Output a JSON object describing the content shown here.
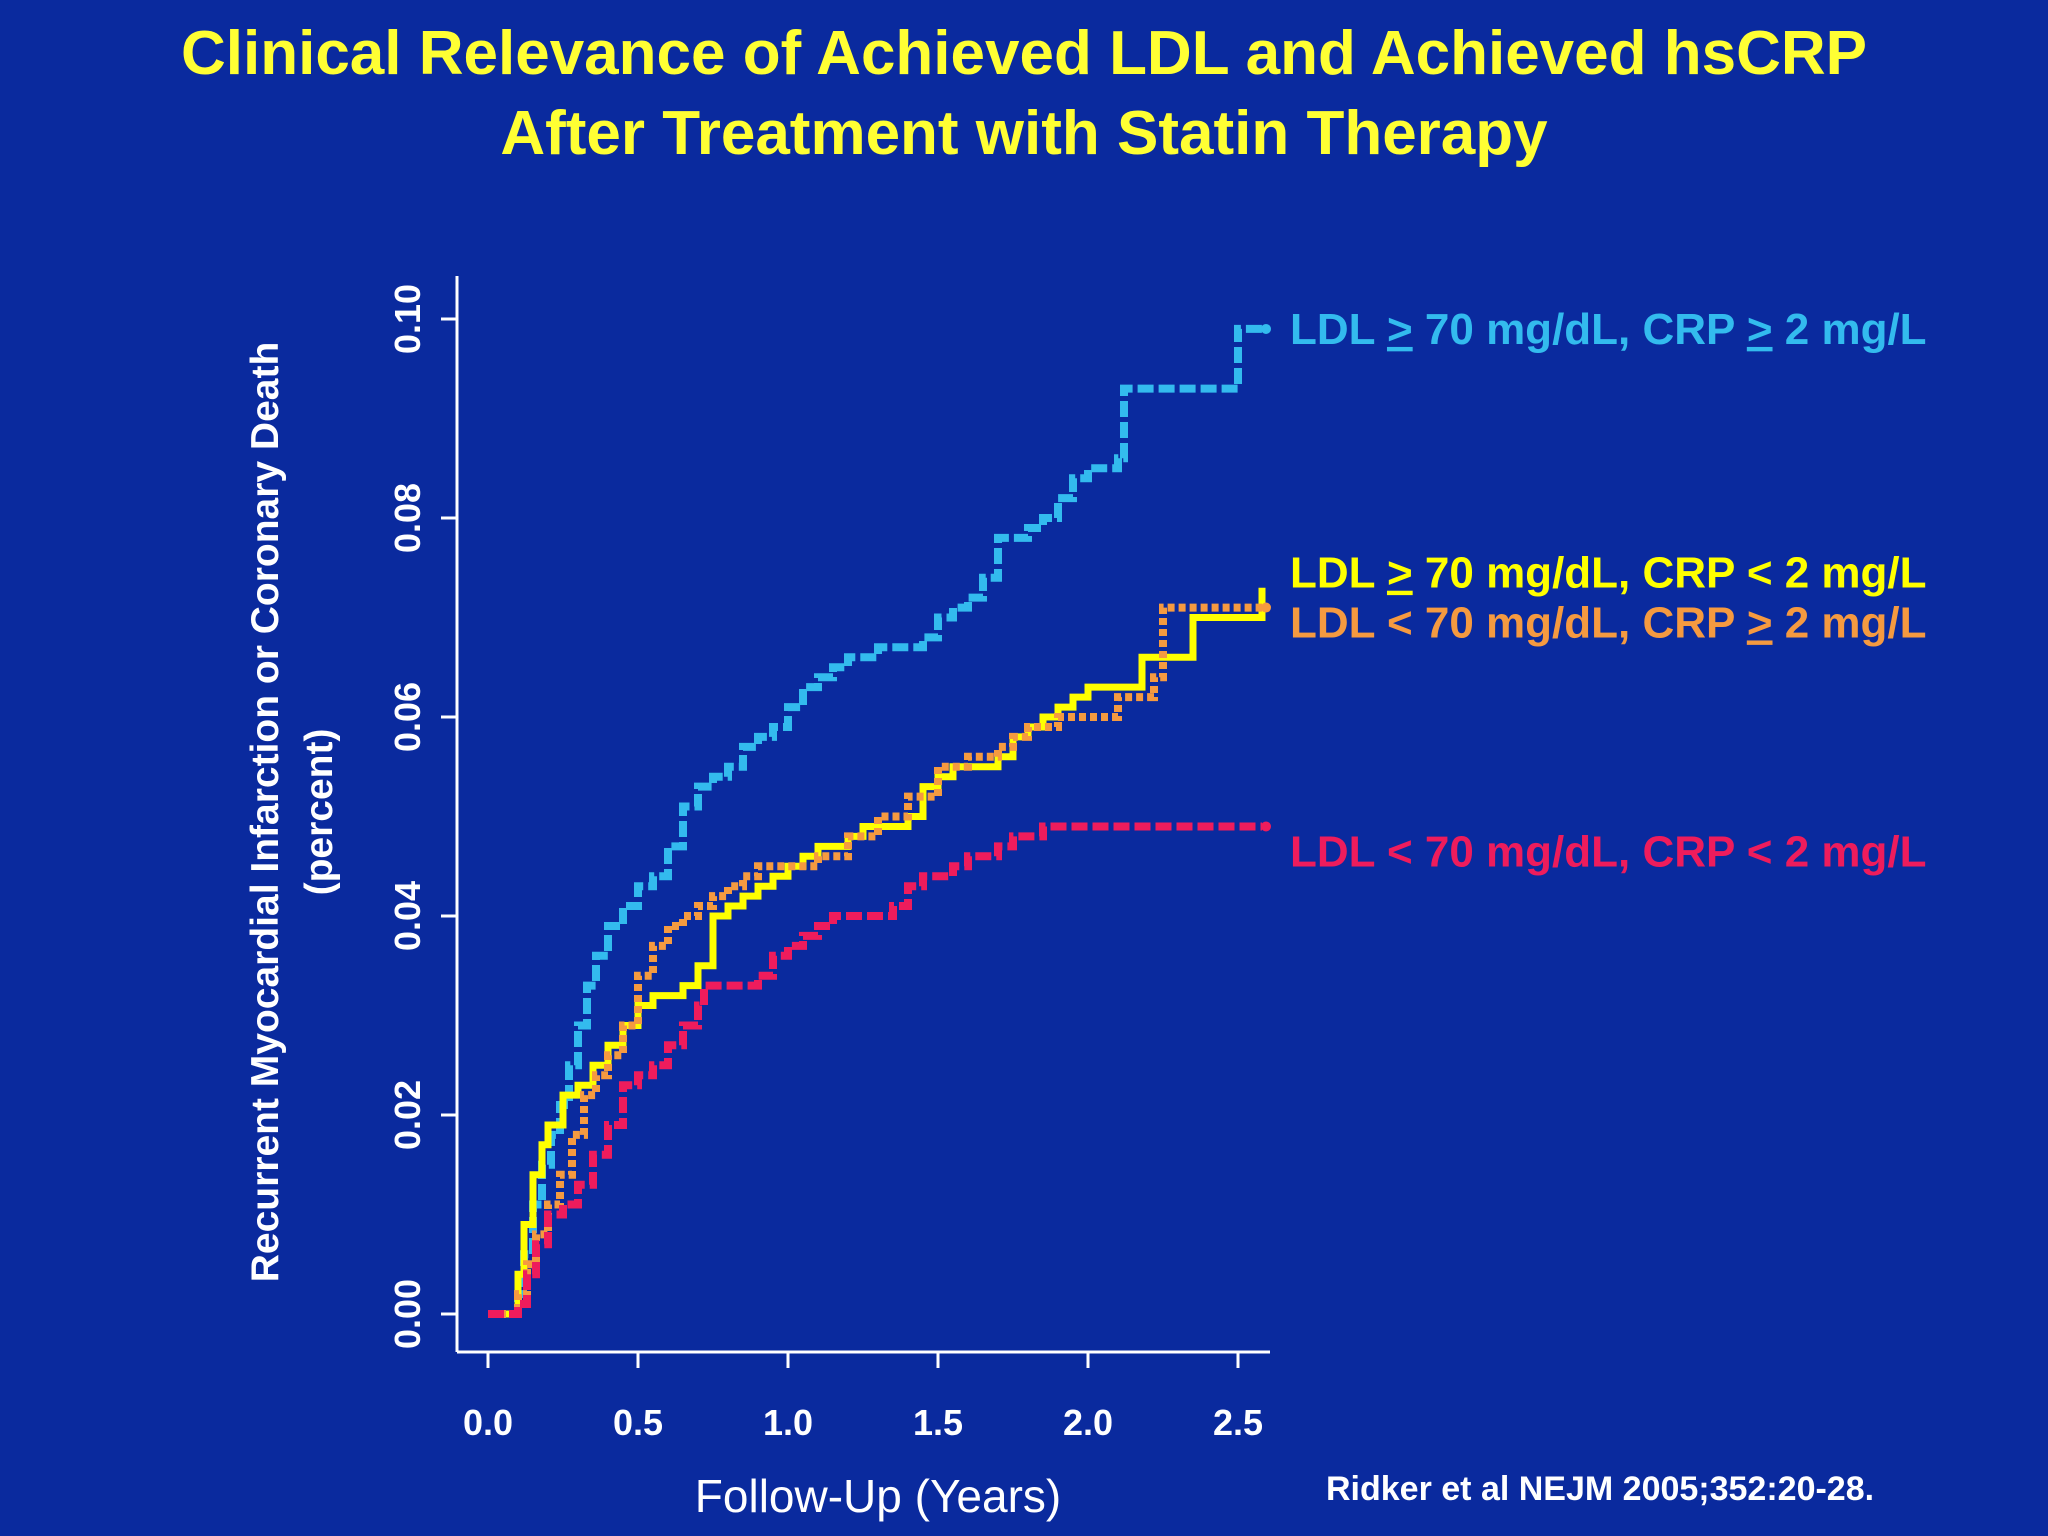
{
  "slide": {
    "title_line1": "Clinical Relevance of Achieved LDL and Achieved hsCRP",
    "title_line2": "After Treatment with Statin Therapy",
    "citation": "Ridker et al NEJM 2005;352:20-28."
  },
  "colors": {
    "background": "#0a2a9e",
    "title": "#ffff33",
    "axis": "#ffffff"
  },
  "chart_data": {
    "type": "line",
    "title": "",
    "xlabel": "Follow-Up (Years)",
    "ylabel_line1": "Recurrent Myocardial Infarction or Coronary Death",
    "ylabel_line2": "(percent)",
    "xlim": [
      -0.1,
      2.6
    ],
    "ylim": [
      -0.004,
      0.104
    ],
    "x_ticks": [
      0.0,
      0.5,
      1.0,
      1.5,
      2.0,
      2.5
    ],
    "x_tick_labels": [
      "0.0",
      "0.5",
      "1.0",
      "1.5",
      "2.0",
      "2.5"
    ],
    "y_ticks": [
      0.0,
      0.02,
      0.04,
      0.06,
      0.08,
      0.1
    ],
    "y_tick_labels": [
      "0.00",
      "0.02",
      "0.04",
      "0.06",
      "0.08",
      "0.10"
    ],
    "grid": false,
    "legend": "right, labels at line ends",
    "series": [
      {
        "name": "LDL > 70 mg/dL, CRP > 2 mg/L",
        "label_parts": [
          {
            "t": "LDL ",
            "u": false
          },
          {
            "t": ">",
            "u": true
          },
          {
            "t": " 70 mg/dL, CRP ",
            "u": false
          },
          {
            "t": ">",
            "u": true
          },
          {
            "t": " 2 mg/L",
            "u": false
          }
        ],
        "label_y": 0.099,
        "color": "#33bbee",
        "style": "dashed",
        "x": [
          0.0,
          0.08,
          0.1,
          0.12,
          0.15,
          0.18,
          0.21,
          0.24,
          0.27,
          0.3,
          0.33,
          0.36,
          0.4,
          0.45,
          0.5,
          0.55,
          0.6,
          0.65,
          0.7,
          0.75,
          0.8,
          0.85,
          0.9,
          0.95,
          1.0,
          1.05,
          1.1,
          1.15,
          1.2,
          1.3,
          1.4,
          1.45,
          1.5,
          1.55,
          1.6,
          1.65,
          1.7,
          1.75,
          1.8,
          1.85,
          1.9,
          1.95,
          2.0,
          2.05,
          2.1,
          2.12,
          2.2,
          2.3,
          2.4,
          2.48,
          2.5,
          2.58
        ],
        "y": [
          0.0,
          0.0,
          0.002,
          0.006,
          0.011,
          0.015,
          0.018,
          0.021,
          0.025,
          0.029,
          0.033,
          0.036,
          0.039,
          0.041,
          0.043,
          0.044,
          0.047,
          0.051,
          0.053,
          0.054,
          0.055,
          0.057,
          0.058,
          0.059,
          0.061,
          0.063,
          0.064,
          0.065,
          0.066,
          0.067,
          0.067,
          0.068,
          0.07,
          0.071,
          0.072,
          0.074,
          0.078,
          0.078,
          0.079,
          0.08,
          0.082,
          0.084,
          0.085,
          0.085,
          0.086,
          0.093,
          0.093,
          0.093,
          0.093,
          0.093,
          0.099,
          0.099
        ]
      },
      {
        "name": "LDL > 70 mg/dL, CRP < 2 mg/L",
        "label_parts": [
          {
            "t": "LDL ",
            "u": false
          },
          {
            "t": ">",
            "u": true
          },
          {
            "t": " 70 mg/dL, CRP < 2 mg/L",
            "u": false
          }
        ],
        "label_y": 0.0745,
        "color": "#ffff00",
        "style": "solid",
        "x": [
          0.0,
          0.08,
          0.1,
          0.12,
          0.15,
          0.18,
          0.2,
          0.25,
          0.3,
          0.35,
          0.4,
          0.45,
          0.5,
          0.55,
          0.6,
          0.65,
          0.7,
          0.75,
          0.8,
          0.85,
          0.9,
          0.95,
          1.0,
          1.05,
          1.1,
          1.2,
          1.25,
          1.3,
          1.4,
          1.45,
          1.5,
          1.55,
          1.6,
          1.7,
          1.75,
          1.8,
          1.85,
          1.9,
          1.95,
          2.0,
          2.1,
          2.18,
          2.22,
          2.3,
          2.35,
          2.45,
          2.55,
          2.58
        ],
        "y": [
          0.0,
          0.0,
          0.004,
          0.009,
          0.014,
          0.017,
          0.019,
          0.022,
          0.023,
          0.025,
          0.027,
          0.029,
          0.031,
          0.032,
          0.032,
          0.033,
          0.035,
          0.04,
          0.041,
          0.042,
          0.043,
          0.044,
          0.045,
          0.046,
          0.047,
          0.048,
          0.049,
          0.049,
          0.05,
          0.053,
          0.054,
          0.055,
          0.055,
          0.056,
          0.058,
          0.059,
          0.06,
          0.061,
          0.062,
          0.063,
          0.063,
          0.066,
          0.066,
          0.066,
          0.07,
          0.07,
          0.07,
          0.073
        ]
      },
      {
        "name": "LDL < 70 mg/dL, CRP > 2 mg/L",
        "label_parts": [
          {
            "t": "LDL < 70 mg/dL, CRP ",
            "u": false
          },
          {
            "t": ">",
            "u": true
          },
          {
            "t": " 2 mg/L",
            "u": false
          }
        ],
        "label_y": 0.0695,
        "color": "#f59a40",
        "style": "dotted",
        "x": [
          0.0,
          0.08,
          0.1,
          0.13,
          0.16,
          0.2,
          0.24,
          0.28,
          0.32,
          0.36,
          0.4,
          0.45,
          0.5,
          0.55,
          0.6,
          0.65,
          0.7,
          0.75,
          0.8,
          0.85,
          0.9,
          0.95,
          1.0,
          1.1,
          1.2,
          1.3,
          1.4,
          1.5,
          1.6,
          1.7,
          1.75,
          1.8,
          1.9,
          2.0,
          2.05,
          2.1,
          2.18,
          2.22,
          2.25,
          2.4,
          2.58
        ],
        "y": [
          0.0,
          0.0,
          0.002,
          0.005,
          0.008,
          0.011,
          0.014,
          0.018,
          0.022,
          0.024,
          0.026,
          0.029,
          0.034,
          0.037,
          0.039,
          0.04,
          0.041,
          0.042,
          0.043,
          0.044,
          0.045,
          0.045,
          0.045,
          0.046,
          0.048,
          0.05,
          0.052,
          0.055,
          0.056,
          0.057,
          0.058,
          0.059,
          0.06,
          0.06,
          0.06,
          0.062,
          0.062,
          0.064,
          0.071,
          0.071,
          0.071
        ]
      },
      {
        "name": "LDL < 70 mg/dL, CRP < 2 mg/L",
        "label_parts": [
          {
            "t": "LDL < 70 mg/dL, CRP < 2 mg/L",
            "u": false
          }
        ],
        "label_y": 0.0465,
        "color": "#ee1c5c",
        "style": "dashed",
        "x": [
          0.0,
          0.08,
          0.1,
          0.13,
          0.16,
          0.2,
          0.25,
          0.3,
          0.35,
          0.4,
          0.45,
          0.5,
          0.55,
          0.6,
          0.65,
          0.7,
          0.72,
          0.8,
          0.9,
          0.95,
          1.0,
          1.05,
          1.1,
          1.15,
          1.2,
          1.3,
          1.35,
          1.4,
          1.45,
          1.5,
          1.55,
          1.6,
          1.65,
          1.7,
          1.75,
          1.8,
          1.85,
          2.0,
          2.2,
          2.4,
          2.58
        ],
        "y": [
          0.0,
          0.0,
          0.001,
          0.004,
          0.007,
          0.01,
          0.011,
          0.013,
          0.016,
          0.019,
          0.023,
          0.024,
          0.025,
          0.027,
          0.029,
          0.031,
          0.033,
          0.033,
          0.034,
          0.036,
          0.037,
          0.038,
          0.039,
          0.04,
          0.04,
          0.04,
          0.041,
          0.043,
          0.044,
          0.044,
          0.045,
          0.046,
          0.046,
          0.047,
          0.048,
          0.048,
          0.049,
          0.049,
          0.049,
          0.049,
          0.049
        ]
      }
    ]
  }
}
